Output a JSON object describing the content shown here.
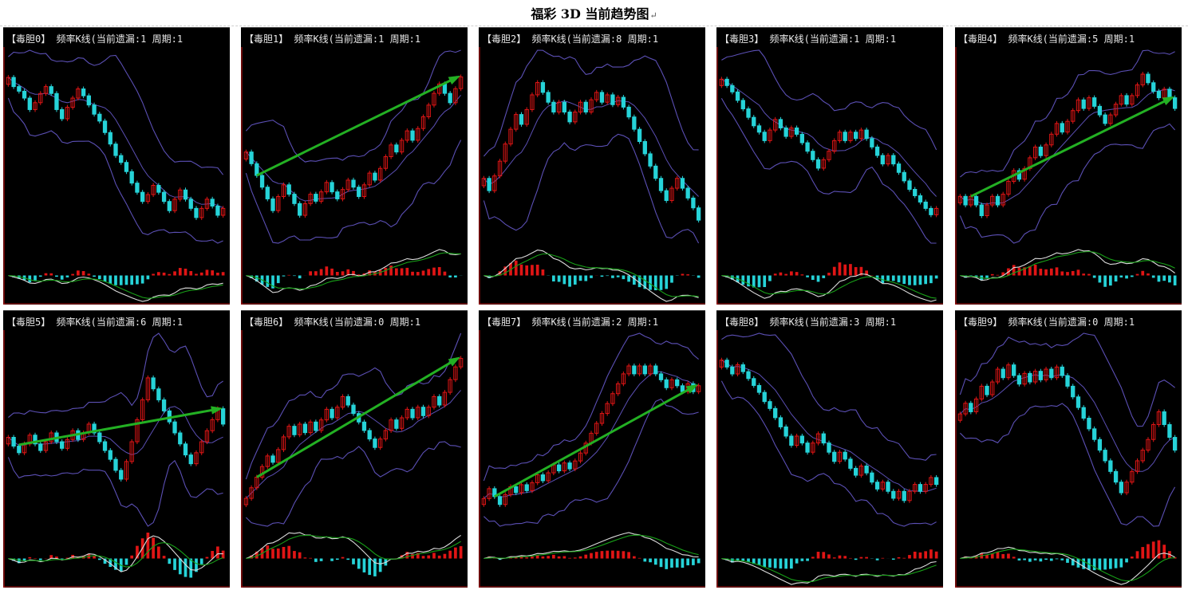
{
  "page": {
    "title": "福彩 3D 当前趋势图",
    "return_mark": "↵"
  },
  "panel_label": {
    "prefix": "频率K线(当前遗漏:",
    "period": "周期:1"
  },
  "colors": {
    "up_candle": "#e01515",
    "down_candle": "#26d3d8",
    "band": "#5b4fb4",
    "macd_white": "#dcdcdc",
    "macd_green": "#18a018",
    "trend_arrow": "#23b023",
    "axis_line": "#b01010",
    "background": "#000000"
  },
  "chart_data": [
    {
      "type": "candlestick",
      "name": "【毒胆0】",
      "omission": "1",
      "trend": "down",
      "arrow": false,
      "close": [
        8,
        7.6,
        7.4,
        7.1,
        6.6,
        6.9,
        7.3,
        7.6,
        7.3,
        6.6,
        6.2,
        6.7,
        7.1,
        7.5,
        7.2,
        6.8,
        6.4,
        6.1,
        5.6,
        5.1,
        4.6,
        4.3,
        3.9,
        3.4,
        3.0,
        2.6,
        2.9,
        3.3,
        3.0,
        2.6,
        2.2,
        2.7,
        3.1,
        2.7,
        2.3,
        1.9,
        2.3,
        2.7,
        2.4,
        2.0,
        2.3
      ]
    },
    {
      "type": "candlestick",
      "name": "【毒胆1】",
      "omission": "1",
      "trend": "up",
      "arrow": true,
      "close": [
        4.5,
        4.0,
        3.5,
        3.0,
        2.5,
        2.0,
        2.6,
        3.1,
        2.7,
        2.3,
        1.8,
        2.3,
        2.7,
        2.4,
        2.8,
        3.2,
        2.8,
        2.5,
        2.9,
        3.3,
        3.0,
        2.6,
        3.1,
        3.6,
        3.3,
        3.8,
        4.3,
        4.8,
        4.5,
        5.0,
        5.4,
        5.0,
        5.5,
        6.0,
        6.5,
        7.0,
        7.4,
        7.0,
        6.6,
        7.2,
        7.7
      ]
    },
    {
      "type": "candlestick",
      "name": "【毒胆2】",
      "omission": "8",
      "trend": "down",
      "arrow": false,
      "close": [
        3.5,
        3.0,
        3.6,
        4.2,
        4.9,
        5.5,
        6.1,
        5.7,
        6.3,
        6.9,
        7.4,
        7.0,
        6.6,
        6.2,
        6.6,
        6.2,
        5.8,
        6.2,
        6.6,
        6.2,
        6.7,
        7.0,
        6.6,
        6.9,
        6.5,
        6.8,
        6.4,
        6.0,
        5.5,
        5.0,
        4.5,
        4.0,
        3.5,
        3.0,
        2.6,
        3.1,
        3.5,
        3.1,
        2.7,
        2.3,
        1.8
      ]
    },
    {
      "type": "candlestick",
      "name": "【毒胆3】",
      "omission": "1",
      "trend": "down",
      "arrow": false,
      "close": [
        7.5,
        7.2,
        6.9,
        6.5,
        6.1,
        5.7,
        5.3,
        5.0,
        4.6,
        5.1,
        5.6,
        5.2,
        4.8,
        5.2,
        4.9,
        4.5,
        4.1,
        3.7,
        3.3,
        3.7,
        4.1,
        4.6,
        5.0,
        4.6,
        5.0,
        4.7,
        5.1,
        4.7,
        4.3,
        3.9,
        3.5,
        3.9,
        3.5,
        3.1,
        2.7,
        2.3,
        2.0,
        1.7,
        1.4,
        1.1,
        1.4
      ]
    },
    {
      "type": "candlestick",
      "name": "【毒胆4】",
      "omission": "5",
      "trend": "up",
      "arrow": true,
      "close": [
        2.3,
        1.9,
        2.3,
        1.9,
        1.4,
        1.9,
        2.3,
        1.9,
        2.4,
        3.0,
        3.5,
        3.1,
        3.6,
        4.1,
        4.6,
        4.2,
        4.7,
        5.2,
        5.7,
        5.3,
        5.8,
        6.3,
        6.8,
        6.4,
        6.9,
        6.5,
        6.1,
        5.7,
        6.1,
        6.6,
        7.0,
        6.6,
        7.0,
        7.5,
        8.0,
        7.6,
        7.2,
        6.9,
        7.3,
        6.9,
        6.4
      ]
    },
    {
      "type": "candlestick",
      "name": "【毒胆5】",
      "omission": "6",
      "trend": "up",
      "arrow": true,
      "close": [
        4.5,
        4.1,
        3.8,
        4.2,
        4.6,
        4.2,
        3.9,
        4.3,
        4.7,
        4.3,
        4.0,
        4.4,
        4.8,
        4.4,
        4.7,
        5.1,
        4.7,
        4.3,
        3.9,
        3.5,
        3.0,
        2.6,
        3.4,
        4.3,
        5.3,
        6.2,
        7.2,
        6.7,
        6.2,
        5.7,
        5.2,
        4.7,
        4.2,
        3.7,
        3.3,
        3.8,
        4.3,
        4.8,
        5.3,
        5.8,
        5.1
      ]
    },
    {
      "type": "candlestick",
      "name": "【毒胆6】",
      "omission": "0",
      "trend": "up",
      "arrow": true,
      "close": [
        2.0,
        2.5,
        3.0,
        3.5,
        4.0,
        3.7,
        4.3,
        4.9,
        5.4,
        5.0,
        5.5,
        5.1,
        5.6,
        5.2,
        5.7,
        6.2,
        5.8,
        6.3,
        6.8,
        6.4,
        6.0,
        5.6,
        5.2,
        4.8,
        4.4,
        4.8,
        5.2,
        5.7,
        5.3,
        5.8,
        6.2,
        5.8,
        6.3,
        5.9,
        6.3,
        6.8,
        6.4,
        7.0,
        7.6,
        8.2,
        8.6
      ]
    },
    {
      "type": "candlestick",
      "name": "【毒胆7】",
      "omission": "2",
      "trend": "up",
      "arrow": true,
      "close": [
        1.3,
        1.8,
        1.4,
        1.0,
        1.5,
        1.9,
        1.6,
        2.0,
        1.7,
        2.1,
        2.5,
        2.2,
        2.6,
        3.0,
        2.7,
        3.1,
        2.8,
        3.2,
        3.6,
        4.1,
        4.6,
        5.1,
        5.6,
        6.1,
        6.6,
        7.1,
        7.6,
        8.0,
        7.6,
        8.0,
        7.6,
        8.0,
        7.6,
        7.3,
        6.9,
        7.3,
        7.0,
        6.7,
        7.1,
        6.7,
        7.0
      ]
    },
    {
      "type": "candlestick",
      "name": "【毒胆8】",
      "omission": "3",
      "trend": "down",
      "arrow": false,
      "close": [
        7.0,
        6.7,
        6.4,
        6.8,
        6.5,
        6.2,
        5.9,
        5.6,
        5.2,
        4.9,
        4.5,
        4.1,
        3.7,
        3.3,
        3.7,
        3.4,
        3.0,
        3.4,
        3.8,
        3.4,
        3.0,
        2.6,
        3.0,
        2.7,
        2.3,
        2.0,
        2.4,
        2.1,
        1.7,
        1.4,
        1.7,
        1.3,
        1.0,
        1.3,
        0.9,
        1.3,
        1.6,
        1.3,
        1.6,
        1.9,
        1.6
      ]
    },
    {
      "type": "candlestick",
      "name": "【毒胆9】",
      "omission": "0",
      "trend": "down",
      "arrow": false,
      "close": [
        5.5,
        6.0,
        5.6,
        6.2,
        6.8,
        6.4,
        7.0,
        7.6,
        7.2,
        7.8,
        7.3,
        6.9,
        7.4,
        7.0,
        7.5,
        7.1,
        7.6,
        7.2,
        7.7,
        7.3,
        6.8,
        6.3,
        5.8,
        5.3,
        4.8,
        4.3,
        3.8,
        3.3,
        2.8,
        2.3,
        1.8,
        2.3,
        2.8,
        3.3,
        3.8,
        4.3,
        5.0,
        5.6,
        5.0,
        4.4,
        3.8
      ]
    }
  ]
}
